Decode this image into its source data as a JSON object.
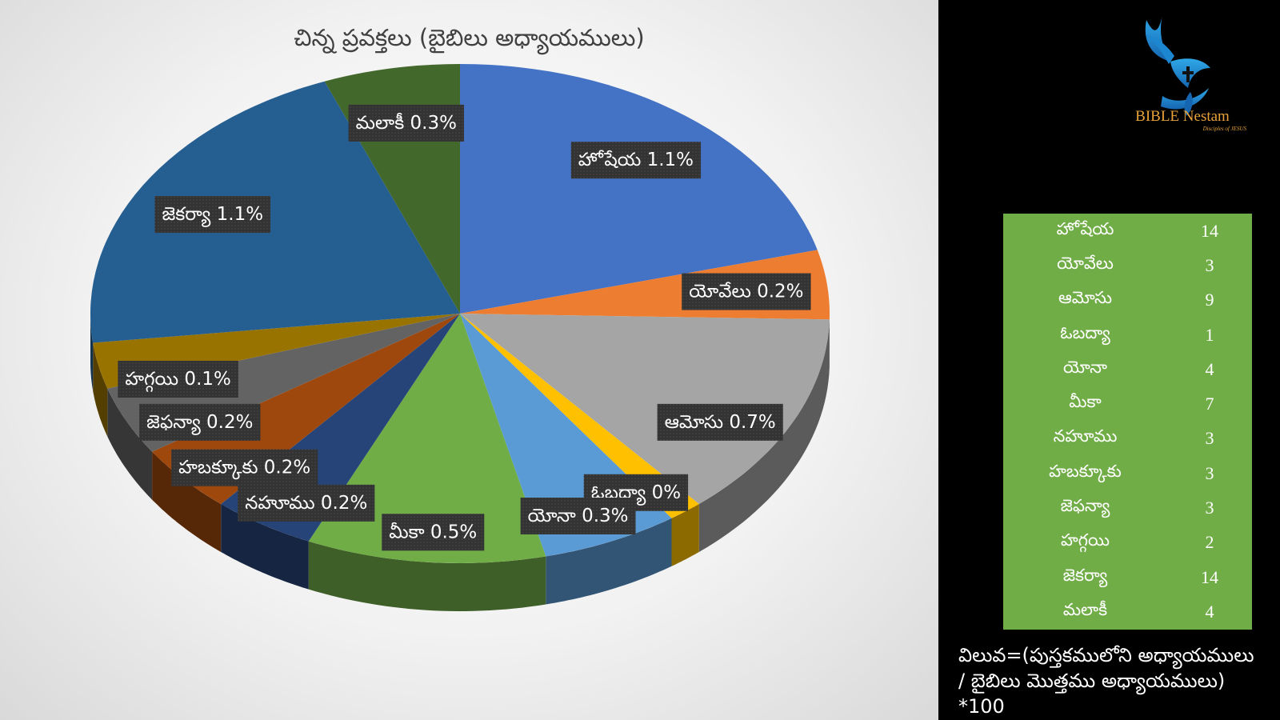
{
  "chart_data": {
    "type": "pie",
    "title": "చిన్న ప్రవక్తలు (బైబిలు అధ్యాయములు)",
    "slices": [
      {
        "label": "హోషేయ",
        "value": 14,
        "data_label": "హోషేయ 1.1%",
        "color": "#4472c4"
      },
      {
        "label": "యోవేలు",
        "value": 3,
        "data_label": "యోవేలు 0.2%",
        "color": "#ed7d31"
      },
      {
        "label": "ఆమోసు",
        "value": 9,
        "data_label": "ఆమోసు 0.7%",
        "color": "#a5a5a5"
      },
      {
        "label": "ఓబద్యా",
        "value": 1,
        "data_label": "ఓబద్యా 0%",
        "color": "#ffc000"
      },
      {
        "label": "యోనా",
        "value": 4,
        "data_label": "యోనా 0.3%",
        "color": "#5b9bd5"
      },
      {
        "label": "మీకా",
        "value": 7,
        "data_label": "మీకా 0.5%",
        "color": "#70ad47"
      },
      {
        "label": "నహూము",
        "value": 3,
        "data_label": "నహూము 0.2%",
        "color": "#264478"
      },
      {
        "label": "హబక్కూకు",
        "value": 3,
        "data_label": "హబక్కూకు 0.2%",
        "color": "#9e480e"
      },
      {
        "label": "జెఫన్యా",
        "value": 3,
        "data_label": "జెఫన్యా 0.2%",
        "color": "#636363"
      },
      {
        "label": "హగ్గయి",
        "value": 2,
        "data_label": "హగ్గయి 0.1%",
        "color": "#997300"
      },
      {
        "label": "జెకర్యా",
        "value": 14,
        "data_label": "జెకర్యా 1.1%",
        "color": "#255e91"
      },
      {
        "label": "మలాకీ",
        "value": 4,
        "data_label": "మలాకీ 0.3%",
        "color": "#43682b"
      }
    ]
  },
  "sidebar": {
    "logo_text": "BIBLE Nestam",
    "logo_subtext": "Disciples of JESUS",
    "table": [
      {
        "name": "హోషేయ",
        "value": "14"
      },
      {
        "name": "యోవేలు",
        "value": "3"
      },
      {
        "name": "ఆమోసు",
        "value": "9"
      },
      {
        "name": "ఓబద్యా",
        "value": "1"
      },
      {
        "name": "యోనా",
        "value": "4"
      },
      {
        "name": "మీకా",
        "value": "7"
      },
      {
        "name": "నహూము",
        "value": "3"
      },
      {
        "name": "హబక్కూకు",
        "value": "3"
      },
      {
        "name": "జెఫన్యా",
        "value": "3"
      },
      {
        "name": "హగ్గయి",
        "value": "2"
      },
      {
        "name": "జెకర్యా",
        "value": "14"
      },
      {
        "name": "మలాకీ",
        "value": "4"
      }
    ],
    "formula_lines": [
      "విలువ=(పుస్తకములోని అధ్యాయములు",
      "/ బైబిలు మొత్తము అధ్యాయములు)",
      "*100"
    ]
  }
}
